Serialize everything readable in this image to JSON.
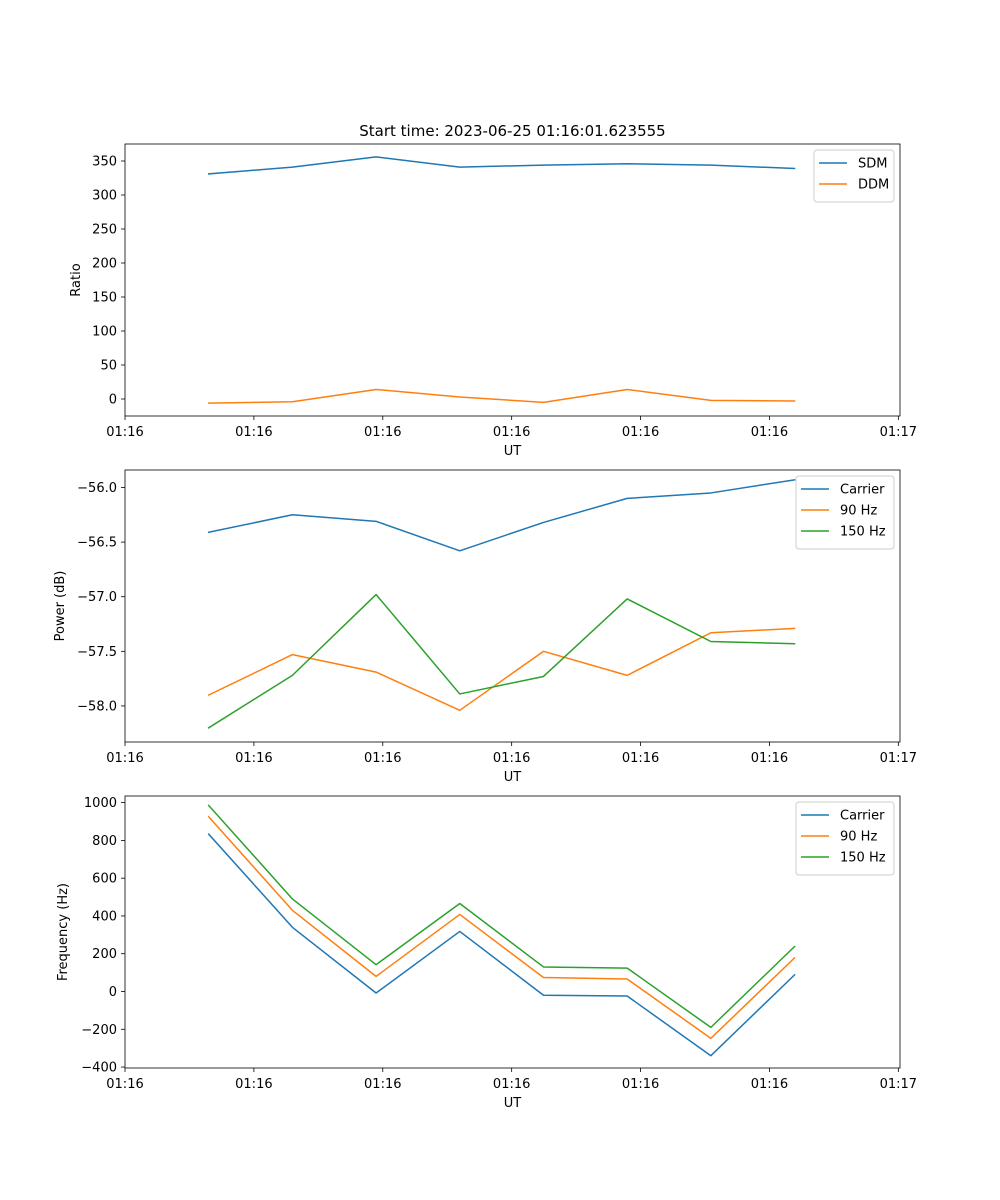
{
  "figure": {
    "title": "Start time: 2023-06-25 01:16:01.623555"
  },
  "chart_data": [
    {
      "type": "line",
      "xlabel": "UT",
      "ylabel": "Ratio",
      "x": [
        1,
        2,
        3,
        4,
        5,
        6,
        7,
        8
      ],
      "xlim": [
        0,
        9.26
      ],
      "xtick_positions": [
        0,
        1.54,
        3.08,
        4.62,
        6.16,
        7.7,
        9.24
      ],
      "xtick_labels": [
        "01:16",
        "01:16",
        "01:16",
        "01:16",
        "01:16",
        "01:16",
        "01:17"
      ],
      "ylim": [
        -25,
        375
      ],
      "yticks": [
        0,
        50,
        100,
        150,
        200,
        250,
        300,
        350
      ],
      "legend_position": "upper-right",
      "grid": false,
      "series": [
        {
          "name": "SDM",
          "color": "#1f77b4",
          "values": [
            331,
            341,
            356,
            341,
            344,
            346,
            344,
            339
          ]
        },
        {
          "name": "DDM",
          "color": "#ff7f0e",
          "values": [
            -6,
            -4,
            14,
            3,
            -5,
            14,
            -2,
            -3
          ]
        }
      ]
    },
    {
      "type": "line",
      "xlabel": "UT",
      "ylabel": "Power (dB)",
      "x": [
        1,
        2,
        3,
        4,
        5,
        6,
        7,
        8
      ],
      "xlim": [
        0,
        9.26
      ],
      "xtick_positions": [
        0,
        1.54,
        3.08,
        4.62,
        6.16,
        7.7,
        9.24
      ],
      "xtick_labels": [
        "01:16",
        "01:16",
        "01:16",
        "01:16",
        "01:16",
        "01:16",
        "01:17"
      ],
      "ylim": [
        -58.33,
        -55.84
      ],
      "yticks": [
        -58.0,
        -57.5,
        -57.0,
        -56.5,
        -56.0
      ],
      "ytick_labels": [
        "−58.0",
        "−57.5",
        "−57.0",
        "−56.5",
        "−56.0"
      ],
      "legend_position": "upper-right",
      "grid": false,
      "series": [
        {
          "name": "Carrier",
          "color": "#1f77b4",
          "values": [
            -56.41,
            -56.25,
            -56.31,
            -56.58,
            -56.32,
            -56.1,
            -56.05,
            -55.93
          ]
        },
        {
          "name": "90 Hz",
          "color": "#ff7f0e",
          "values": [
            -57.9,
            -57.53,
            -57.69,
            -58.04,
            -57.5,
            -57.72,
            -57.33,
            -57.29
          ]
        },
        {
          "name": "150 Hz",
          "color": "#2ca02c",
          "values": [
            -58.2,
            -57.72,
            -56.98,
            -57.89,
            -57.73,
            -57.02,
            -57.41,
            -57.43
          ]
        }
      ]
    },
    {
      "type": "line",
      "xlabel": "UT",
      "ylabel": "Frequency (Hz)",
      "x": [
        1,
        2,
        3,
        4,
        5,
        6,
        7,
        8
      ],
      "xlim": [
        0,
        9.26
      ],
      "xtick_positions": [
        0,
        1.54,
        3.08,
        4.62,
        6.16,
        7.7,
        9.24
      ],
      "xtick_labels": [
        "01:16",
        "01:16",
        "01:16",
        "01:16",
        "01:16",
        "01:16",
        "01:17"
      ],
      "ylim": [
        -405,
        1035
      ],
      "yticks": [
        -400,
        -200,
        0,
        200,
        400,
        600,
        800,
        1000
      ],
      "ytick_labels": [
        "−400",
        "−200",
        "0",
        "200",
        "400",
        "600",
        "800",
        "1000"
      ],
      "legend_position": "upper-right",
      "grid": false,
      "series": [
        {
          "name": "Carrier",
          "color": "#1f77b4",
          "values": [
            833,
            340,
            -8,
            318,
            -20,
            -24,
            -340,
            88
          ]
        },
        {
          "name": "90 Hz",
          "color": "#ff7f0e",
          "values": [
            925,
            430,
            80,
            408,
            74,
            66,
            -248,
            178
          ]
        },
        {
          "name": "150 Hz",
          "color": "#2ca02c",
          "values": [
            985,
            490,
            142,
            466,
            130,
            124,
            -190,
            238
          ]
        }
      ]
    }
  ]
}
